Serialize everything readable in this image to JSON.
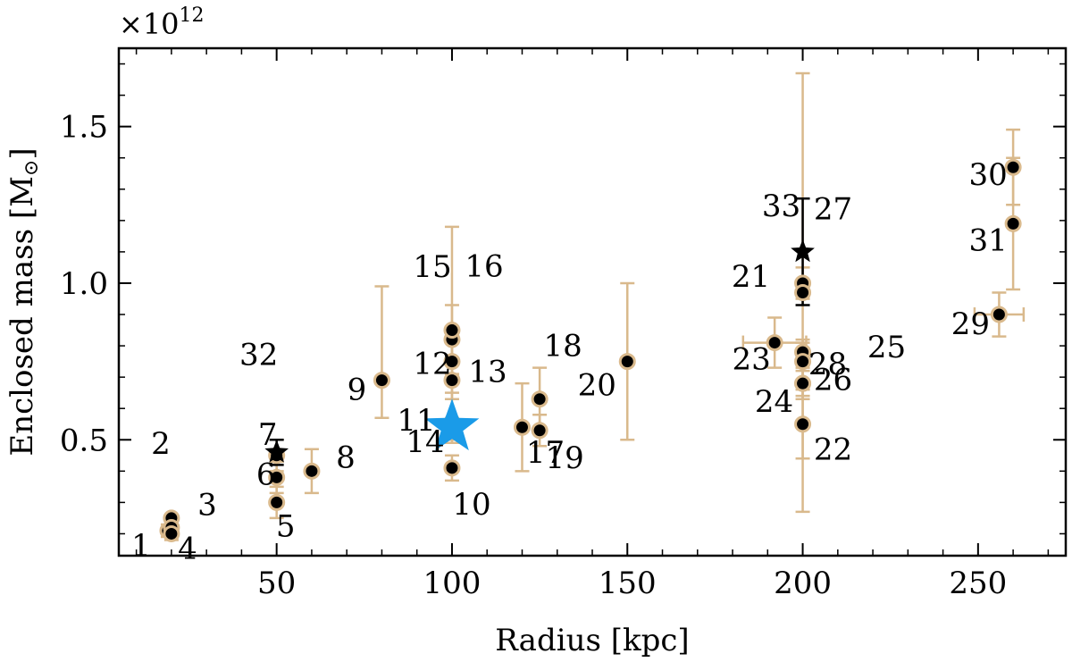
{
  "chart_data": {
    "type": "scatter",
    "title": "",
    "xlabel": "Radius [kpc]",
    "ylabel": "Enclosed mass [M",
    "ylabel_symbol": "⊙",
    "ylabel_suffix": "]",
    "y_multiplier_text": "×10",
    "y_multiplier_exp": "12",
    "xlim": [
      5,
      275
    ],
    "ylim": [
      0.13,
      1.75
    ],
    "grid": false,
    "x_ticks": [
      50,
      100,
      150,
      200,
      250
    ],
    "x_tick_labels": [
      "50",
      "100",
      "150",
      "200",
      "250"
    ],
    "y_ticks": [
      0.5,
      1.0,
      1.5
    ],
    "y_tick_labels": [
      "0.5",
      "1.0",
      "1.5"
    ],
    "colors": {
      "errorbar": "#d9b98c",
      "marker_fill": "#000000",
      "marker_edge": "#d9b98c",
      "highlight": "#1a9be8",
      "black_star": "#000000"
    },
    "points": [
      {
        "label": "1",
        "x": 19,
        "y": 0.21,
        "xerr": 1,
        "yerr": 0.02
      },
      {
        "label": "2",
        "x": 20,
        "y": 0.25,
        "xerr": 0,
        "yerr": 0
      },
      {
        "label": "3",
        "x": 20,
        "y": 0.22,
        "xerr": 1,
        "yerr": 0.02
      },
      {
        "label": "4",
        "x": 20,
        "y": 0.2,
        "xerr": 1,
        "yerr": 0.02
      },
      {
        "label": "5",
        "x": 50,
        "y": 0.3,
        "xerr": 0,
        "yerr": 0.05
      },
      {
        "label": "6",
        "x": 50,
        "y": 0.38,
        "xerr": 0,
        "yerr": 0.05
      },
      {
        "label": "7",
        "x": 50,
        "y": 0.45,
        "xerr": 0,
        "yerr": 0.05
      },
      {
        "label": "8",
        "x": 60,
        "y": 0.4,
        "xerr": 0,
        "yerr": 0.07
      },
      {
        "label": "9",
        "x": 80,
        "y": 0.69,
        "xerr": 0,
        "yerr": 0.3,
        "yerr_lo": 0.12
      },
      {
        "label": "10",
        "x": 100,
        "y": 0.41,
        "xerr": 0,
        "yerr": 0.04
      },
      {
        "label": "11",
        "x": 100,
        "y": 0.53,
        "xerr": 0,
        "yerr": 0.04
      },
      {
        "label": "12",
        "x": 100,
        "y": 0.75,
        "xerr": 0,
        "yerr": 0.1
      },
      {
        "label": "13",
        "x": 100,
        "y": 0.69,
        "xerr": 0,
        "yerr": 0.06
      },
      {
        "label": "14",
        "x": 100,
        "y": 0.53,
        "xerr": 0,
        "yerr": 0.03
      },
      {
        "label": "15",
        "x": 100,
        "y": 0.82,
        "xerr": 0,
        "yerr": 0.11
      },
      {
        "label": "16",
        "x": 100,
        "y": 0.85,
        "xerr": 0,
        "yerr": 0.33
      },
      {
        "label": "17",
        "x": 120,
        "y": 0.54,
        "xerr": 0,
        "yerr": 0.14
      },
      {
        "label": "18",
        "x": 125,
        "y": 0.63,
        "xerr": 0,
        "yerr": 0.1
      },
      {
        "label": "19",
        "x": 125,
        "y": 0.53,
        "xerr": 0,
        "yerr": 0.05
      },
      {
        "label": "20",
        "x": 150,
        "y": 0.75,
        "xerr": 0,
        "yerr": 0.25
      },
      {
        "label": "21",
        "x": 200,
        "y": 1.0,
        "xerr": 0,
        "yerr": 0.05
      },
      {
        "label": "22",
        "x": 200,
        "y": 0.55,
        "xerr": 0,
        "yerr": 0.11
      },
      {
        "label": "23",
        "x": 192,
        "y": 0.81,
        "xerr": 9,
        "yerr": 0.08
      },
      {
        "label": "24",
        "x": 200,
        "y": 0.68,
        "xerr": 0,
        "yerr": 0.05
      },
      {
        "label": "25",
        "x": 200,
        "y": 0.78,
        "xerr": 0,
        "yerr": 0.04
      },
      {
        "label": "26",
        "x": 200,
        "y": 0.75,
        "xerr": 0,
        "yerr": 0.06
      },
      {
        "label": "27",
        "x": 200,
        "y": 0.97,
        "xerr": 0,
        "yerr": 0.7
      },
      {
        "label": "28",
        "x": 200,
        "y": 0.68,
        "xerr": 0,
        "yerr": 0.04
      },
      {
        "label": "29",
        "x": 256,
        "y": 0.9,
        "xerr": 7,
        "yerr": 0.07
      },
      {
        "label": "30",
        "x": 260,
        "y": 1.37,
        "xerr": 0,
        "yerr": 0.12
      },
      {
        "label": "31",
        "x": 260,
        "y": 1.19,
        "xerr": 0,
        "yerr": 0.21
      },
      {
        "label": "32",
        "x": 50,
        "y": 0.46,
        "xerr": 0,
        "yerr": 0.04,
        "marker": "star-black"
      },
      {
        "label": "33",
        "x": 200,
        "y": 1.1,
        "xerr": 0,
        "yerr": 0.17,
        "marker": "star-black"
      }
    ],
    "highlight_point": {
      "x": 100,
      "y": 0.54,
      "marker": "star-blue"
    }
  }
}
